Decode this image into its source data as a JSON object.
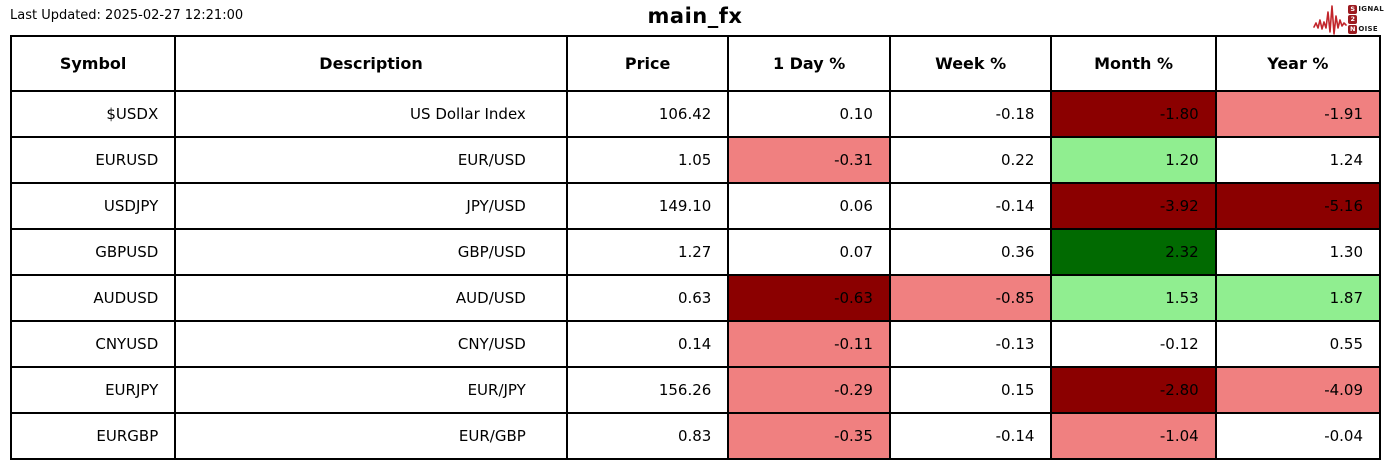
{
  "page": {
    "last_updated": "Last Updated: 2025-02-27 12:21:00",
    "title": "main_fx"
  },
  "logo": {
    "lines": [
      {
        "badge": "S",
        "rest": "IGNAL"
      },
      {
        "badge": "2",
        "rest": ""
      },
      {
        "badge": "N",
        "rest": "OISE"
      }
    ],
    "waveform_color": "#c2252b",
    "badge_color": "#9c1b20"
  },
  "palette": {
    "strong_down": "#8b0000",
    "down": "#f08080",
    "up": "#90ee90",
    "strong_up": "#016a01",
    "neutral": "#ffffff"
  },
  "table": {
    "columns": [
      "Symbol",
      "Description",
      "Price",
      "1 Day %",
      "Week %",
      "Month %",
      "Year %"
    ],
    "rows": [
      {
        "symbol": "$USDX",
        "description": "US Dollar Index",
        "price": "106.42",
        "day": "0.10",
        "week": "-0.18",
        "month": "-1.80",
        "year": "-1.91",
        "cell_colors": {
          "day": "neutral",
          "week": "neutral",
          "month": "strong_down",
          "year": "down"
        }
      },
      {
        "symbol": "EURUSD",
        "description": "EUR/USD",
        "price": "1.05",
        "day": "-0.31",
        "week": "0.22",
        "month": "1.20",
        "year": "1.24",
        "cell_colors": {
          "day": "down",
          "week": "neutral",
          "month": "up",
          "year": "neutral"
        }
      },
      {
        "symbol": "USDJPY",
        "description": "JPY/USD",
        "price": "149.10",
        "day": "0.06",
        "week": "-0.14",
        "month": "-3.92",
        "year": "-5.16",
        "cell_colors": {
          "day": "neutral",
          "week": "neutral",
          "month": "strong_down",
          "year": "strong_down"
        }
      },
      {
        "symbol": "GBPUSD",
        "description": "GBP/USD",
        "price": "1.27",
        "day": "0.07",
        "week": "0.36",
        "month": "2.32",
        "year": "1.30",
        "cell_colors": {
          "day": "neutral",
          "week": "neutral",
          "month": "strong_up",
          "year": "neutral"
        }
      },
      {
        "symbol": "AUDUSD",
        "description": "AUD/USD",
        "price": "0.63",
        "day": "-0.63",
        "week": "-0.85",
        "month": "1.53",
        "year": "1.87",
        "cell_colors": {
          "day": "strong_down",
          "week": "down",
          "month": "up",
          "year": "up"
        }
      },
      {
        "symbol": "CNYUSD",
        "description": "CNY/USD",
        "price": "0.14",
        "day": "-0.11",
        "week": "-0.13",
        "month": "-0.12",
        "year": "0.55",
        "cell_colors": {
          "day": "down",
          "week": "neutral",
          "month": "neutral",
          "year": "neutral"
        }
      },
      {
        "symbol": "EURJPY",
        "description": "EUR/JPY",
        "price": "156.26",
        "day": "-0.29",
        "week": "0.15",
        "month": "-2.80",
        "year": "-4.09",
        "cell_colors": {
          "day": "down",
          "week": "neutral",
          "month": "strong_down",
          "year": "down"
        }
      },
      {
        "symbol": "EURGBP",
        "description": "EUR/GBP",
        "price": "0.83",
        "day": "-0.35",
        "week": "-0.14",
        "month": "-1.04",
        "year": "-0.04",
        "cell_colors": {
          "day": "down",
          "week": "neutral",
          "month": "down",
          "year": "neutral"
        }
      }
    ]
  },
  "chart_data": {
    "type": "table",
    "title": "main_fx",
    "columns": [
      "Symbol",
      "Description",
      "Price",
      "1 Day %",
      "Week %",
      "Month %",
      "Year %"
    ],
    "rows": [
      [
        "$USDX",
        "US Dollar Index",
        106.42,
        0.1,
        -0.18,
        -1.8,
        -1.91
      ],
      [
        "EURUSD",
        "EUR/USD",
        1.05,
        -0.31,
        0.22,
        1.2,
        1.24
      ],
      [
        "USDJPY",
        "JPY/USD",
        149.1,
        0.06,
        -0.14,
        -3.92,
        -5.16
      ],
      [
        "GBPUSD",
        "GBP/USD",
        1.27,
        0.07,
        0.36,
        2.32,
        1.3
      ],
      [
        "AUDUSD",
        "AUD/USD",
        0.63,
        -0.63,
        -0.85,
        1.53,
        1.87
      ],
      [
        "CNYUSD",
        "CNY/USD",
        0.14,
        -0.11,
        -0.13,
        -0.12,
        0.55
      ],
      [
        "EURJPY",
        "EUR/JPY",
        156.26,
        -0.29,
        0.15,
        -2.8,
        -4.09
      ],
      [
        "EURGBP",
        "EUR/GBP",
        0.83,
        -0.35,
        -0.14,
        -1.04,
        -0.04
      ]
    ],
    "cell_color_legend": {
      "strong_down": "#8b0000",
      "down": "#f08080",
      "up": "#90ee90",
      "strong_up": "#016a01",
      "neutral": "#ffffff"
    }
  }
}
